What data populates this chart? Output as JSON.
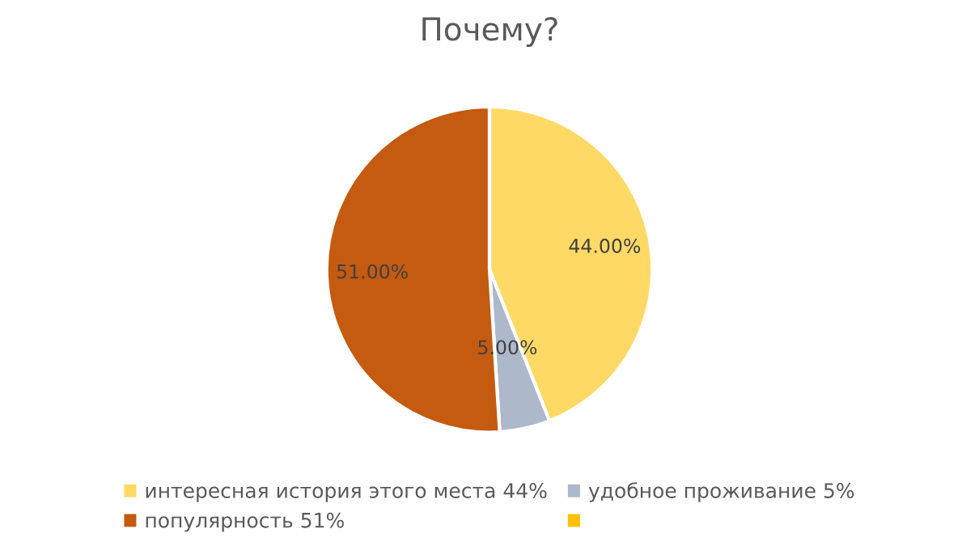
{
  "chart_data": {
    "type": "pie",
    "title": "Почему?",
    "categories": [
      "интересная история этого места 44%",
      "удобное проживание 5%",
      "популярность 51%",
      null
    ],
    "values": [
      44,
      5,
      51,
      0
    ],
    "colors": [
      "#ffd966",
      "#adb9ca",
      "#c55a11",
      "#ffc000"
    ],
    "value_labels": [
      "44.00%",
      "5.00%",
      "51.00%",
      null
    ],
    "legend": "bottom"
  }
}
